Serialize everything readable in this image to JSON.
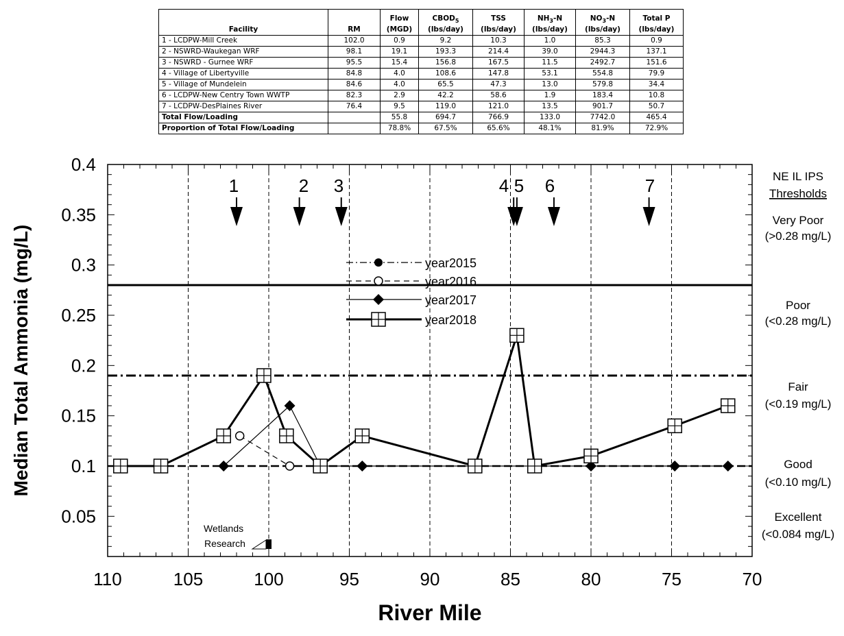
{
  "table": {
    "headers": {
      "facility": "Facility",
      "rm": "RM",
      "flow_l1": "Flow",
      "flow_l2": "(MGD)",
      "cbod_l1": "CBOD",
      "cbod_sub": "5",
      "cbod_l2": "(lbs/day)",
      "tss_l1": "TSS",
      "tss_l2": "(lbs/day)",
      "nh3_a": "NH",
      "nh3_sub": "3",
      "nh3_b": "-N",
      "nh3_l2": "(lbs/day)",
      "no3_a": "NO",
      "no3_sub": "3",
      "no3_b": "-N",
      "no3_l2": "(lbs/day)",
      "tp_l1": "Total P",
      "tp_l2": "(lbs/day)"
    },
    "rows": [
      {
        "facility": "1 - LCDPW-Mill Creek",
        "rm": "102.0",
        "flow": "0.9",
        "cbod": "9.2",
        "tss": "10.3",
        "nh3": "1.0",
        "no3": "85.3",
        "tp": "0.9"
      },
      {
        "facility": "2 - NSWRD-Waukegan WRF",
        "rm": "98.1",
        "flow": "19.1",
        "cbod": "193.3",
        "tss": "214.4",
        "nh3": "39.0",
        "no3": "2944.3",
        "tp": "137.1"
      },
      {
        "facility": "3 - NSWRD - Gurnee WRF",
        "rm": "95.5",
        "flow": "15.4",
        "cbod": "156.8",
        "tss": "167.5",
        "nh3": "11.5",
        "no3": "2492.7",
        "tp": "151.6"
      },
      {
        "facility": "4 - Village of Libertyville",
        "rm": "84.8",
        "flow": "4.0",
        "cbod": "108.6",
        "tss": "147.8",
        "nh3": "53.1",
        "no3": "554.8",
        "tp": "79.9"
      },
      {
        "facility": "5 - Village of Mundelein",
        "rm": "84.6",
        "flow": "4.0",
        "cbod": "65.5",
        "tss": "47.3",
        "nh3": "13.0",
        "no3": "579.8",
        "tp": "34.4"
      },
      {
        "facility": "6 - LCDPW-New Centry Town WWTP",
        "rm": "82.3",
        "flow": "2.9",
        "cbod": "42.2",
        "tss": "58.6",
        "nh3": "1.9",
        "no3": "183.4",
        "tp": "10.8"
      },
      {
        "facility": "7 - LCDPW-DesPlaines River",
        "rm": "76.4",
        "flow": "9.5",
        "cbod": "119.0",
        "tss": "121.0",
        "nh3": "13.5",
        "no3": "901.7",
        "tp": "50.7"
      }
    ],
    "total": {
      "label": "Total Flow/Loading",
      "rm": "",
      "flow": "55.8",
      "cbod": "694.7",
      "tss": "766.9",
      "nh3": "133.0",
      "no3": "7742.0",
      "tp": "465.4"
    },
    "proportion": {
      "label": "Proportion of Total Flow/Loading",
      "rm": "",
      "flow": "78.8%",
      "cbod": "67.5%",
      "tss": "65.6%",
      "nh3": "48.1%",
      "no3": "81.9%",
      "tp": "72.9%"
    }
  },
  "chart_data": {
    "type": "line",
    "xlabel": "River Mile",
    "ylabel": "Median Total Ammonia (mg/L)",
    "xlim": [
      110,
      70
    ],
    "ylim": [
      0.01,
      0.4
    ],
    "x_ticks": [
      110,
      105,
      100,
      95,
      90,
      85,
      80,
      75,
      70
    ],
    "y_ticks": [
      0.05,
      0.1,
      0.15,
      0.2,
      0.25,
      0.3,
      0.35,
      0.4
    ],
    "y_tick_labels": [
      "0.05",
      "0.1",
      "0.15",
      "0.2",
      "0.25",
      "0.3",
      "0.35",
      "0.4"
    ],
    "series": [
      {
        "name": "year2015",
        "marker": "filled-circle",
        "line": "dash-dot",
        "points": []
      },
      {
        "name": "year2016",
        "marker": "open-circle",
        "line": "dashed",
        "points": [
          [
            101.8,
            0.13
          ],
          [
            98.7,
            0.1
          ]
        ]
      },
      {
        "name": "year2017",
        "marker": "filled-diamond",
        "line": "solid-thin",
        "points": [
          [
            102.8,
            0.1
          ],
          [
            98.7,
            0.16
          ],
          [
            96.8,
            0.1
          ],
          [
            94.2,
            0.1
          ],
          [
            80.0,
            0.1
          ],
          [
            74.8,
            0.1
          ],
          [
            71.5,
            0.1
          ]
        ]
      },
      {
        "name": "year2018",
        "marker": "boxed-cross",
        "line": "solid-thick",
        "points": [
          [
            109.2,
            0.1
          ],
          [
            106.7,
            0.1
          ],
          [
            102.8,
            0.13
          ],
          [
            100.3,
            0.19
          ],
          [
            98.9,
            0.13
          ],
          [
            96.8,
            0.1
          ],
          [
            94.2,
            0.13
          ],
          [
            87.2,
            0.1
          ],
          [
            84.6,
            0.23
          ],
          [
            83.5,
            0.1
          ],
          [
            80.0,
            0.11
          ],
          [
            74.8,
            0.14
          ],
          [
            71.5,
            0.16
          ]
        ]
      }
    ],
    "thresholds": [
      {
        "value": 0.28,
        "style": "solid"
      },
      {
        "value": 0.19,
        "style": "dash-dot"
      },
      {
        "value": 0.1,
        "style": "dashed"
      }
    ],
    "vertical_lines": [
      105,
      100,
      95,
      90,
      85,
      80,
      75
    ],
    "facility_markers": [
      {
        "label": "1",
        "rm": 102.0
      },
      {
        "label": "2",
        "rm": 98.1
      },
      {
        "label": "3",
        "rm": 95.5
      },
      {
        "label": "4",
        "rm": 84.8
      },
      {
        "label": "5",
        "rm": 84.6
      },
      {
        "label": "6",
        "rm": 82.3
      },
      {
        "label": "7",
        "rm": 76.4
      }
    ],
    "threshold_labels": {
      "title_l1": "NE IL IPS",
      "title_l2": "Thresholds",
      "very_poor": [
        "Very Poor",
        "(>0.28 mg/L)"
      ],
      "poor": [
        "Poor",
        "(<0.28 mg/L)"
      ],
      "fair": [
        "Fair",
        "(<0.19 mg/L)"
      ],
      "good": [
        "Good",
        "(<0.10 mg/L)"
      ],
      "excellent": [
        "Excellent",
        "(<0.084 mg/L)"
      ]
    },
    "annotation": {
      "line1": "Wetlands",
      "line2": "Research",
      "x": 100
    }
  }
}
